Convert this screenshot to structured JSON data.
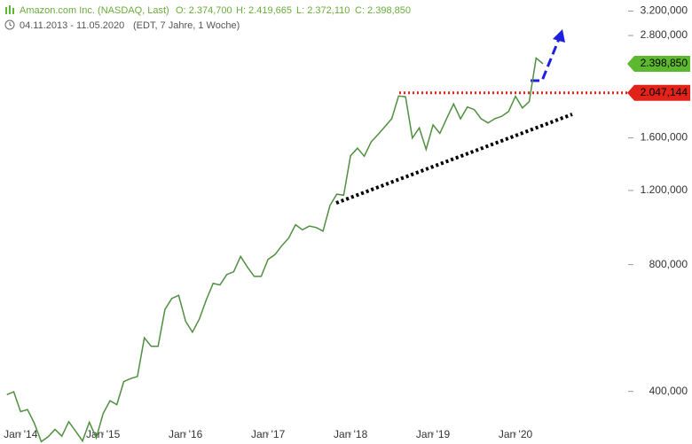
{
  "chart_data": {
    "type": "line",
    "header": {
      "title": "Amazon.com Inc. (NASDAQ, Last)",
      "open": "O: 2.374,700",
      "high": "H: 2.419,665",
      "low": "L: 2.372,110",
      "close": "C: 2.398,850",
      "period": "04.11.2013 - 11.05.2020",
      "info": "(EDT, 7 Jahre, 1 Woche)"
    },
    "x": [
      "2013-11",
      "2013-12",
      "2014-01",
      "2014-02",
      "2014-03",
      "2014-04",
      "2014-05",
      "2014-06",
      "2014-07",
      "2014-08",
      "2014-09",
      "2014-10",
      "2014-11",
      "2014-12",
      "2015-01",
      "2015-02",
      "2015-03",
      "2015-04",
      "2015-05",
      "2015-06",
      "2015-07",
      "2015-08",
      "2015-09",
      "2015-10",
      "2015-11",
      "2015-12",
      "2016-01",
      "2016-02",
      "2016-03",
      "2016-04",
      "2016-05",
      "2016-06",
      "2016-07",
      "2016-08",
      "2016-09",
      "2016-10",
      "2016-11",
      "2016-12",
      "2017-01",
      "2017-02",
      "2017-03",
      "2017-04",
      "2017-05",
      "2017-06",
      "2017-07",
      "2017-08",
      "2017-09",
      "2017-10",
      "2017-11",
      "2017-12",
      "2018-01",
      "2018-02",
      "2018-03",
      "2018-04",
      "2018-05",
      "2018-06",
      "2018-07",
      "2018-08",
      "2018-09",
      "2018-10",
      "2018-11",
      "2018-12",
      "2019-01",
      "2019-02",
      "2019-03",
      "2019-04",
      "2019-05",
      "2019-06",
      "2019-07",
      "2019-08",
      "2019-09",
      "2019-10",
      "2019-11",
      "2019-12",
      "2020-01",
      "2020-02",
      "2020-03",
      "2020-04",
      "2020-05"
    ],
    "series": [
      {
        "color": "#4f8f3f",
        "values": [
          393,
          399,
          358,
          362,
          336,
          304,
          312,
          325,
          313,
          339,
          322,
          305,
          338,
          310,
          354,
          380,
          372,
          422,
          429,
          434,
          536,
          512,
          512,
          626,
          665,
          676,
          587,
          553,
          594,
          659,
          722,
          716,
          758,
          769,
          837,
          789,
          750,
          750,
          823,
          845,
          887,
          925,
          995,
          968,
          987,
          980,
          961,
          1105,
          1176,
          1169,
          1450,
          1512,
          1447,
          1566,
          1629,
          1700,
          1777,
          2012,
          2003,
          1598,
          1690,
          1502,
          1718,
          1640,
          1781,
          1926,
          1775,
          1894,
          1867,
          1776,
          1736,
          1777,
          1800,
          1848,
          2009,
          1884,
          1950,
          2474,
          2399
        ]
      }
    ],
    "xlim": [
      "2013-10",
      "2021-05"
    ],
    "xticks": [
      {
        "value": "2014-01",
        "label": "Jan '14"
      },
      {
        "value": "2015-01",
        "label": "Jan '15"
      },
      {
        "value": "2016-01",
        "label": "Jan '16"
      },
      {
        "value": "2017-01",
        "label": "Jan '17"
      },
      {
        "value": "2018-01",
        "label": "Jan '18"
      },
      {
        "value": "2019-01",
        "label": "Jan '19"
      },
      {
        "value": "2020-01",
        "label": "Jan '20"
      }
    ],
    "ylim": [
      300,
      3400
    ],
    "log_scale": true,
    "yticks": [
      {
        "value": 400,
        "label": "400,000"
      },
      {
        "value": 800,
        "label": "800,000"
      },
      {
        "value": 1200,
        "label": "1.200,000"
      },
      {
        "value": 1600,
        "label": "1.600,000"
      },
      {
        "value": 2800,
        "label": "2.800,000"
      },
      {
        "value": 3200,
        "label": "3.200,000"
      }
    ],
    "last_price": {
      "value": 2398.85,
      "label": "2.398,850",
      "color": "#5cb82e"
    },
    "resistance": {
      "value": 2047.144,
      "label": "2.047,144",
      "color": "#e2231a"
    }
  }
}
